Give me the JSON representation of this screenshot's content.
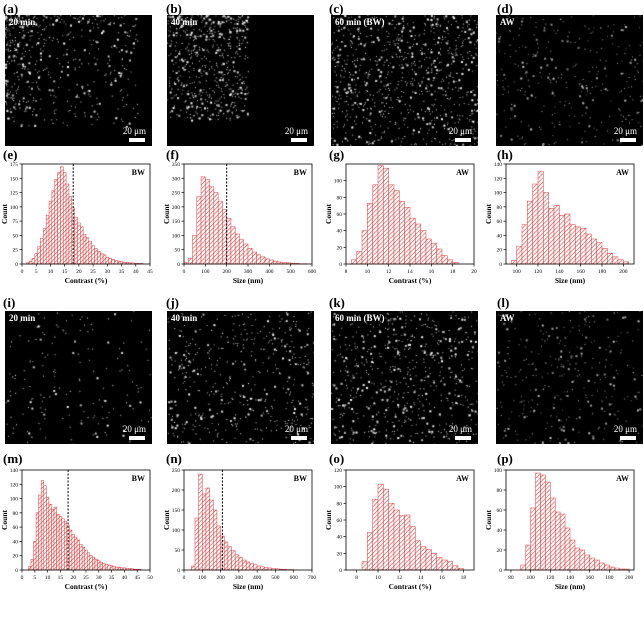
{
  "panels": [
    {
      "id": "a",
      "letter": "(a)",
      "kind": "micro",
      "label": "20 min",
      "scalebar": "20 μm",
      "density": 0.55,
      "cluster": "topleft"
    },
    {
      "id": "b",
      "letter": "(b)",
      "kind": "micro",
      "label": "40 min",
      "scalebar": "20 μm",
      "density": 0.65,
      "cluster": "top"
    },
    {
      "id": "c",
      "letter": "(c)",
      "kind": "micro",
      "label": "60 min (BW)",
      "scalebar": "20 μm",
      "density": 0.9,
      "cluster": "all"
    },
    {
      "id": "d",
      "letter": "(d)",
      "kind": "micro",
      "label": "AW",
      "scalebar": "20 μm",
      "density": 0.35,
      "cluster": "dim"
    },
    {
      "id": "i",
      "letter": "(i)",
      "kind": "micro",
      "label": "20 min",
      "scalebar": "20 μm",
      "density": 0.2,
      "cluster": "sparse"
    },
    {
      "id": "j",
      "letter": "(j)",
      "kind": "micro",
      "label": "40 min",
      "scalebar": "20 μm",
      "density": 0.55,
      "cluster": "all"
    },
    {
      "id": "k",
      "letter": "(k)",
      "kind": "micro",
      "label": "60 min (BW)",
      "scalebar": "20 μm",
      "density": 0.7,
      "cluster": "all"
    },
    {
      "id": "l",
      "letter": "(l)",
      "kind": "micro",
      "label": "AW",
      "scalebar": "20 μm",
      "density": 0.35,
      "cluster": "dim"
    }
  ],
  "chart_data": [
    {
      "id": "e",
      "letter": "(e)",
      "type": "bar",
      "tag": "BW",
      "xlabel": "Contrast (%)",
      "ylabel": "Count",
      "xlim": [
        0,
        45
      ],
      "ylim": [
        0,
        175
      ],
      "binwidth": 1,
      "xticks": [
        0,
        5,
        10,
        15,
        20,
        25,
        30,
        35,
        40,
        45
      ],
      "yticks": [
        0,
        25,
        50,
        75,
        100,
        125,
        150,
        175
      ],
      "x": [
        2,
        3,
        4,
        5,
        6,
        7,
        8,
        9,
        10,
        11,
        12,
        13,
        14,
        15,
        16,
        17,
        18,
        19,
        20,
        21,
        22,
        23,
        24,
        25,
        26,
        27,
        28,
        29,
        30,
        31,
        32,
        33,
        34,
        35,
        36,
        37,
        38,
        39,
        40,
        41,
        42
      ],
      "values": [
        2,
        5,
        10,
        18,
        30,
        45,
        62,
        85,
        110,
        128,
        148,
        160,
        170,
        160,
        140,
        118,
        98,
        82,
        72,
        65,
        52,
        46,
        40,
        32,
        27,
        22,
        18,
        16,
        12,
        10,
        8,
        6,
        5,
        4,
        3,
        3,
        2,
        2,
        1,
        1,
        1
      ],
      "mean_line": 18
    },
    {
      "id": "f",
      "letter": "(f)",
      "type": "bar",
      "tag": "BW",
      "xlabel": "Size (nm)",
      "ylabel": "Count",
      "xlim": [
        0,
        600
      ],
      "ylim": [
        0,
        350
      ],
      "binwidth": 20,
      "xticks": [
        0,
        100,
        200,
        300,
        400,
        500,
        600
      ],
      "yticks": [
        0,
        50,
        100,
        150,
        200,
        250,
        300,
        350
      ],
      "x": [
        10,
        30,
        50,
        70,
        90,
        110,
        130,
        150,
        170,
        190,
        210,
        230,
        250,
        270,
        290,
        310,
        330,
        350,
        370,
        390,
        410,
        430,
        450,
        470,
        490,
        510,
        530,
        550,
        570
      ],
      "values": [
        5,
        20,
        100,
        235,
        305,
        295,
        270,
        250,
        220,
        190,
        160,
        130,
        105,
        85,
        70,
        55,
        42,
        32,
        25,
        18,
        14,
        10,
        7,
        5,
        4,
        3,
        2,
        1,
        1
      ],
      "mean_line": 200
    },
    {
      "id": "g",
      "letter": "(g)",
      "type": "bar",
      "tag": "AW",
      "xlabel": "Contrast (%)",
      "ylabel": "Count",
      "xlim": [
        8,
        20
      ],
      "ylim": [
        0,
        120
      ],
      "binwidth": 0.5,
      "xticks": [
        8,
        10,
        12,
        14,
        16,
        18,
        20
      ],
      "yticks": [
        0,
        20,
        40,
        60,
        80,
        100
      ],
      "x": [
        8.75,
        9.25,
        9.75,
        10.25,
        10.75,
        11.25,
        11.75,
        12.25,
        12.75,
        13.25,
        13.75,
        14.25,
        14.75,
        15.25,
        15.75,
        16.25,
        16.75,
        17.25,
        17.75,
        18.25
      ],
      "values": [
        5,
        15,
        40,
        73,
        95,
        118,
        115,
        95,
        88,
        75,
        68,
        55,
        48,
        40,
        30,
        25,
        18,
        10,
        5,
        2
      ]
    },
    {
      "id": "h",
      "letter": "(h)",
      "type": "bar",
      "tag": "AW",
      "xlabel": "Size (nm)",
      "ylabel": "Count",
      "xlim": [
        90,
        210
      ],
      "ylim": [
        0,
        140
      ],
      "binwidth": 5,
      "xticks": [
        100,
        120,
        140,
        160,
        180,
        200
      ],
      "yticks": [
        0,
        20,
        40,
        60,
        80,
        100,
        120,
        140
      ],
      "x": [
        97.5,
        102.5,
        107.5,
        112.5,
        117.5,
        122.5,
        127.5,
        132.5,
        137.5,
        142.5,
        147.5,
        152.5,
        157.5,
        162.5,
        167.5,
        172.5,
        177.5,
        182.5,
        187.5,
        192.5,
        197.5,
        202.5
      ],
      "values": [
        5,
        25,
        55,
        88,
        112,
        130,
        100,
        78,
        82,
        68,
        70,
        55,
        52,
        50,
        42,
        35,
        30,
        22,
        15,
        10,
        6,
        3
      ]
    },
    {
      "id": "m",
      "letter": "(m)",
      "type": "bar",
      "tag": "BW",
      "xlabel": "Contrast (%)",
      "ylabel": "Count",
      "xlim": [
        0,
        50
      ],
      "ylim": [
        0,
        140
      ],
      "binwidth": 1,
      "xticks": [
        0,
        5,
        10,
        15,
        20,
        25,
        30,
        35,
        40,
        45,
        50
      ],
      "yticks": [
        0,
        20,
        40,
        60,
        80,
        100,
        120,
        140
      ],
      "x": [
        3,
        4,
        5,
        6,
        7,
        8,
        9,
        10,
        11,
        12,
        13,
        14,
        15,
        16,
        17,
        18,
        19,
        20,
        21,
        22,
        23,
        24,
        25,
        26,
        27,
        28,
        29,
        30,
        31,
        32,
        33,
        34,
        35,
        36,
        37,
        38,
        39,
        40,
        41,
        42,
        43,
        44,
        45,
        46
      ],
      "values": [
        5,
        15,
        40,
        80,
        105,
        125,
        118,
        102,
        92,
        85,
        88,
        78,
        75,
        72,
        68,
        62,
        56,
        50,
        46,
        42,
        36,
        32,
        28,
        24,
        20,
        18,
        15,
        13,
        11,
        9,
        8,
        7,
        6,
        5,
        4,
        4,
        3,
        3,
        2,
        2,
        2,
        1,
        1,
        1
      ],
      "mean_line": 18
    },
    {
      "id": "n",
      "letter": "(n)",
      "type": "bar",
      "tag": "BW",
      "xlabel": "Size (nm)",
      "ylabel": "Count",
      "xlim": [
        0,
        700
      ],
      "ylim": [
        0,
        250
      ],
      "binwidth": 20,
      "xticks": [
        0,
        100,
        200,
        300,
        400,
        500,
        600,
        700
      ],
      "yticks": [
        0,
        50,
        100,
        150,
        200,
        250
      ],
      "x": [
        50,
        70,
        90,
        110,
        130,
        150,
        170,
        190,
        210,
        230,
        250,
        270,
        290,
        310,
        330,
        350,
        370,
        390,
        410,
        430,
        450,
        470,
        490,
        510,
        530,
        550,
        570,
        590
      ],
      "values": [
        10,
        130,
        240,
        190,
        205,
        175,
        150,
        110,
        85,
        70,
        58,
        48,
        38,
        32,
        25,
        20,
        16,
        13,
        10,
        8,
        6,
        5,
        4,
        3,
        2,
        2,
        1,
        1
      ],
      "mean_line": 210
    },
    {
      "id": "o",
      "letter": "(o)",
      "type": "bar",
      "tag": "AW",
      "xlabel": "Contrast (%)",
      "ylabel": "Count",
      "xlim": [
        7,
        19
      ],
      "ylim": [
        0,
        120
      ],
      "binwidth": 0.5,
      "xticks": [
        8,
        10,
        12,
        14,
        16,
        18
      ],
      "yticks": [
        0,
        20,
        40,
        60,
        80,
        100,
        120
      ],
      "x": [
        8.75,
        9.25,
        9.75,
        10.25,
        10.75,
        11.25,
        11.75,
        12.25,
        12.75,
        13.25,
        13.75,
        14.25,
        14.75,
        15.25,
        15.75,
        16.25,
        16.75,
        17.25,
        17.75
      ],
      "values": [
        10,
        45,
        85,
        103,
        97,
        80,
        72,
        65,
        66,
        52,
        35,
        28,
        25,
        20,
        15,
        12,
        10,
        5,
        2
      ]
    },
    {
      "id": "p",
      "letter": "(p)",
      "type": "bar",
      "tag": "AW",
      "xlabel": "Size (nm)",
      "ylabel": "Count",
      "xlim": [
        75,
        205
      ],
      "ylim": [
        0,
        100
      ],
      "binwidth": 5,
      "xticks": [
        80,
        100,
        120,
        140,
        160,
        180,
        200
      ],
      "yticks": [
        0,
        20,
        40,
        60,
        80,
        100
      ],
      "x": [
        92.5,
        97.5,
        102.5,
        107.5,
        112.5,
        117.5,
        122.5,
        127.5,
        132.5,
        137.5,
        142.5,
        147.5,
        152.5,
        157.5,
        162.5,
        167.5,
        172.5,
        177.5,
        182.5,
        187.5,
        192.5,
        197.5
      ],
      "values": [
        5,
        25,
        62,
        97,
        95,
        88,
        72,
        58,
        56,
        42,
        30,
        22,
        20,
        15,
        12,
        10,
        7,
        5,
        3,
        2,
        1,
        1
      ]
    }
  ]
}
